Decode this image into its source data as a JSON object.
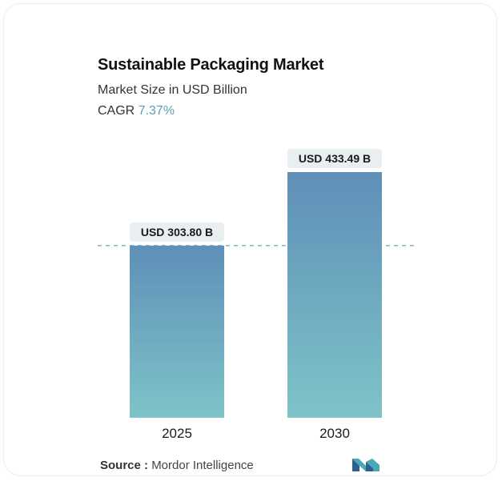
{
  "header": {
    "title": "Sustainable Packaging Market",
    "subtitle": "Market Size in USD Billion",
    "cagr_label": "CAGR",
    "cagr_value": "7.37%"
  },
  "footer": {
    "source_label": "Source :",
    "source_value": "Mordor Intelligence"
  },
  "colors": {
    "bar_top": "#5f8fb8",
    "bar_bottom": "#7ec4c8",
    "label_bg": "#e9eef1",
    "dashed_line": "#6fb3bd",
    "accent": "#5aa0b2"
  },
  "logo": {
    "icon": "mordor-intelligence-logo-icon"
  },
  "chart_data": {
    "type": "bar",
    "categories": [
      "2025",
      "2030"
    ],
    "values": [
      303.8,
      433.49
    ],
    "value_labels": [
      "USD 303.80 B",
      "USD 433.49 B"
    ],
    "title": "Sustainable Packaging Market",
    "subtitle": "Market Size in USD Billion",
    "xlabel": "",
    "ylabel": "",
    "ylim": [
      0,
      433.49
    ],
    "reference_line_value": 303.8,
    "grid": false,
    "legend": "none"
  }
}
